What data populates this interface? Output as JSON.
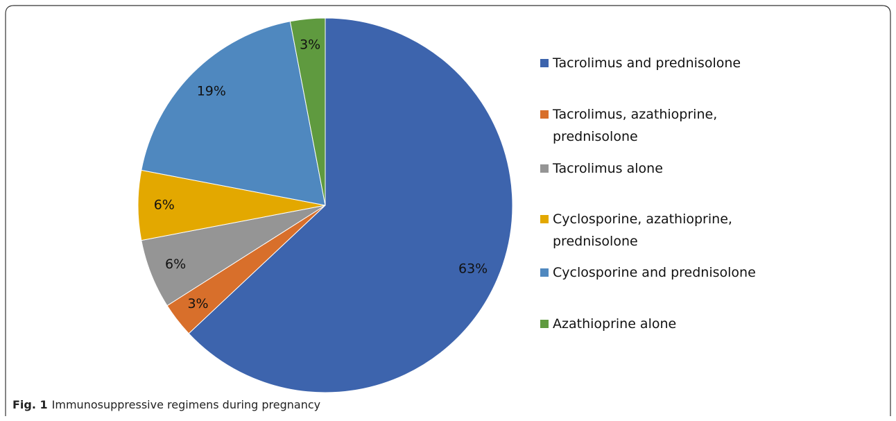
{
  "chart_data": {
    "type": "pie",
    "categories": [
      "Tacrolimus and prednisolone",
      "Tacrolimus, azathioprine, prednisolone",
      "Tacrolimus alone",
      "Cyclosporine, azathioprine, prednisolone",
      "Cyclosporine and prednisolone",
      "Azathioprine alone"
    ],
    "values": [
      63,
      3,
      6,
      6,
      19,
      3
    ],
    "value_labels": [
      "63%",
      "3%",
      "6%",
      "6%",
      "19%",
      "3%"
    ],
    "colors": [
      "#3d64ad",
      "#d86f2b",
      "#959595",
      "#e3a800",
      "#4f88bf",
      "#5f9a3f"
    ],
    "legend": "right",
    "caption_label": "Fig. 1",
    "caption": "Immunosuppressive regimens during pregnancy"
  }
}
